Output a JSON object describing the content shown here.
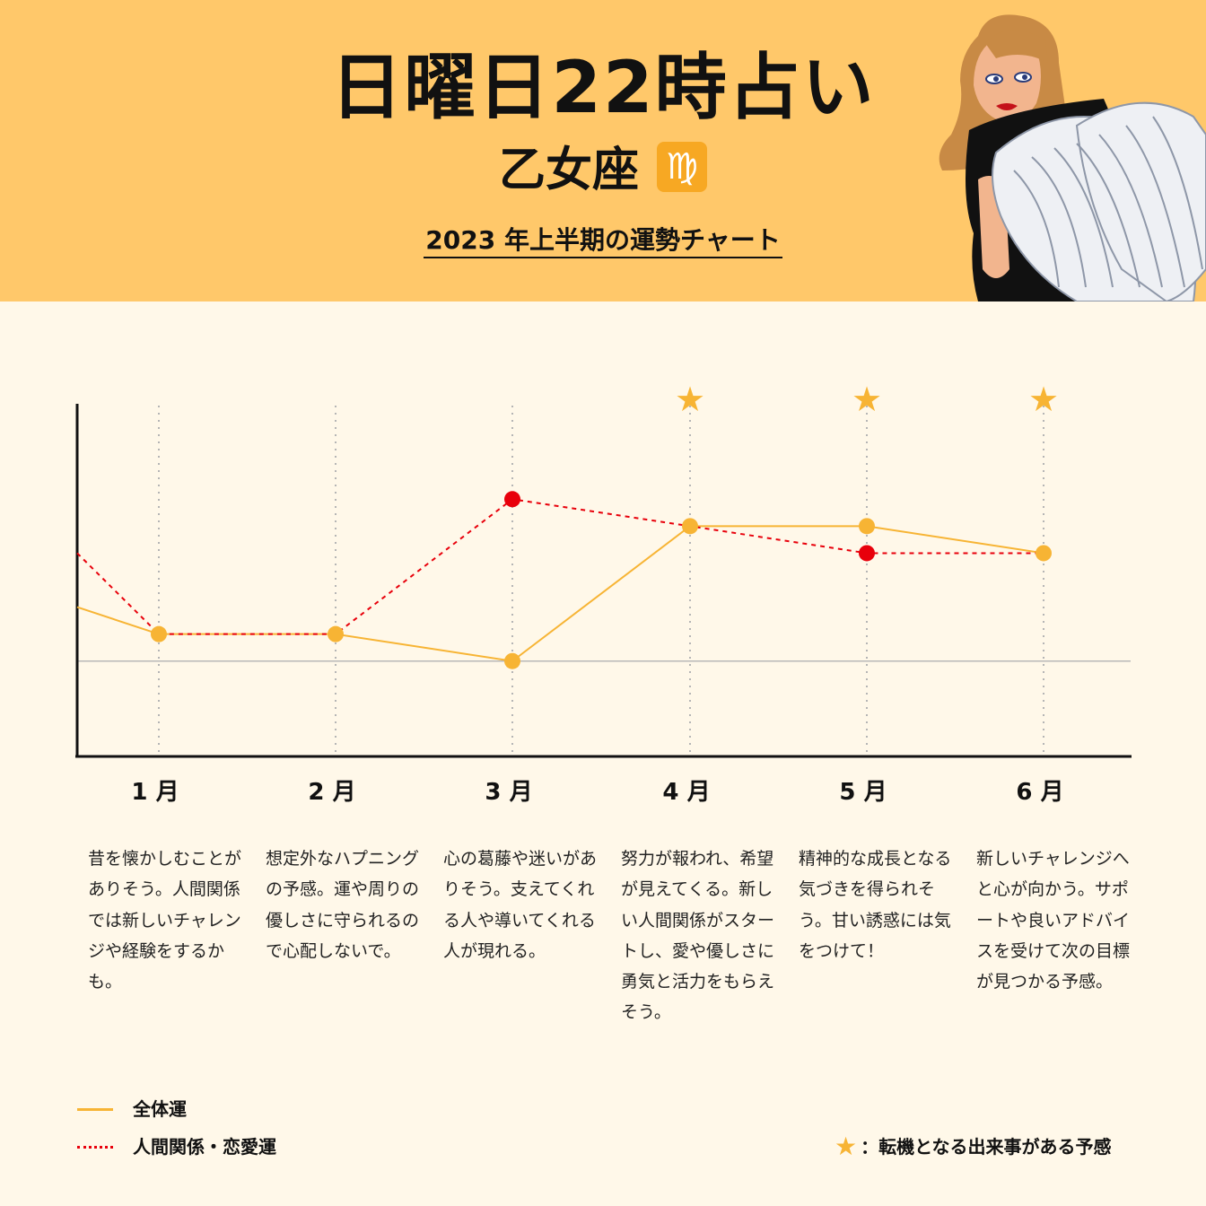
{
  "header": {
    "title": "日曜日22時占い",
    "sign": "乙女座",
    "sign_symbol": "♍",
    "chart_title": "2023 年上半期の運勢チャート"
  },
  "colors": {
    "header_bg": "#ffc86a",
    "page_bg": "#fff8e9",
    "overall_line": "#f7b434",
    "relationship_line": "#e8000b",
    "star": "#f7b434"
  },
  "chart_data": {
    "type": "line",
    "categories": [
      "1 月",
      "2 月",
      "3 月",
      "4 月",
      "5 月",
      "6 月"
    ],
    "series": [
      {
        "name": "全体運",
        "style": "solid",
        "values": [
          1,
          1,
          0,
          5,
          5,
          4
        ],
        "start_value": 2
      },
      {
        "name": "人間関係・恋愛運",
        "style": "dotted",
        "values": [
          1,
          1,
          6,
          5,
          4,
          4
        ],
        "start_value": 4
      }
    ],
    "baseline": 0,
    "ylim": [
      -3.5,
      10
    ],
    "star_months": [
      "4 月",
      "5 月",
      "6 月"
    ],
    "grid": "vertical-dotted"
  },
  "descriptions": [
    "昔を懐かしむことがありそう。人間関係では新しいチャレンジや経験をするかも。",
    "想定外なハプニングの予感。運や周りの優しさに守られるので心配しないで。",
    "心の葛藤や迷いがありそう。支えてくれる人や導いてくれる人が現れる。",
    "努力が報われ、希望が見えてくる。新しい人間関係がスタートし、愛や優しさに勇気と活力をもらえそう。",
    "精神的な成長となる気づきを得られそう。甘い誘惑には気をつけて！",
    "新しいチャレンジへと心が向かう。サポートや良いアドバイスを受けて次の目標が見つかる予感。"
  ],
  "legend": {
    "overall": "全体運",
    "relationship": "人間関係・恋愛運",
    "star_note": "：転機となる出来事がある予感",
    "star_icon": "star-icon"
  }
}
